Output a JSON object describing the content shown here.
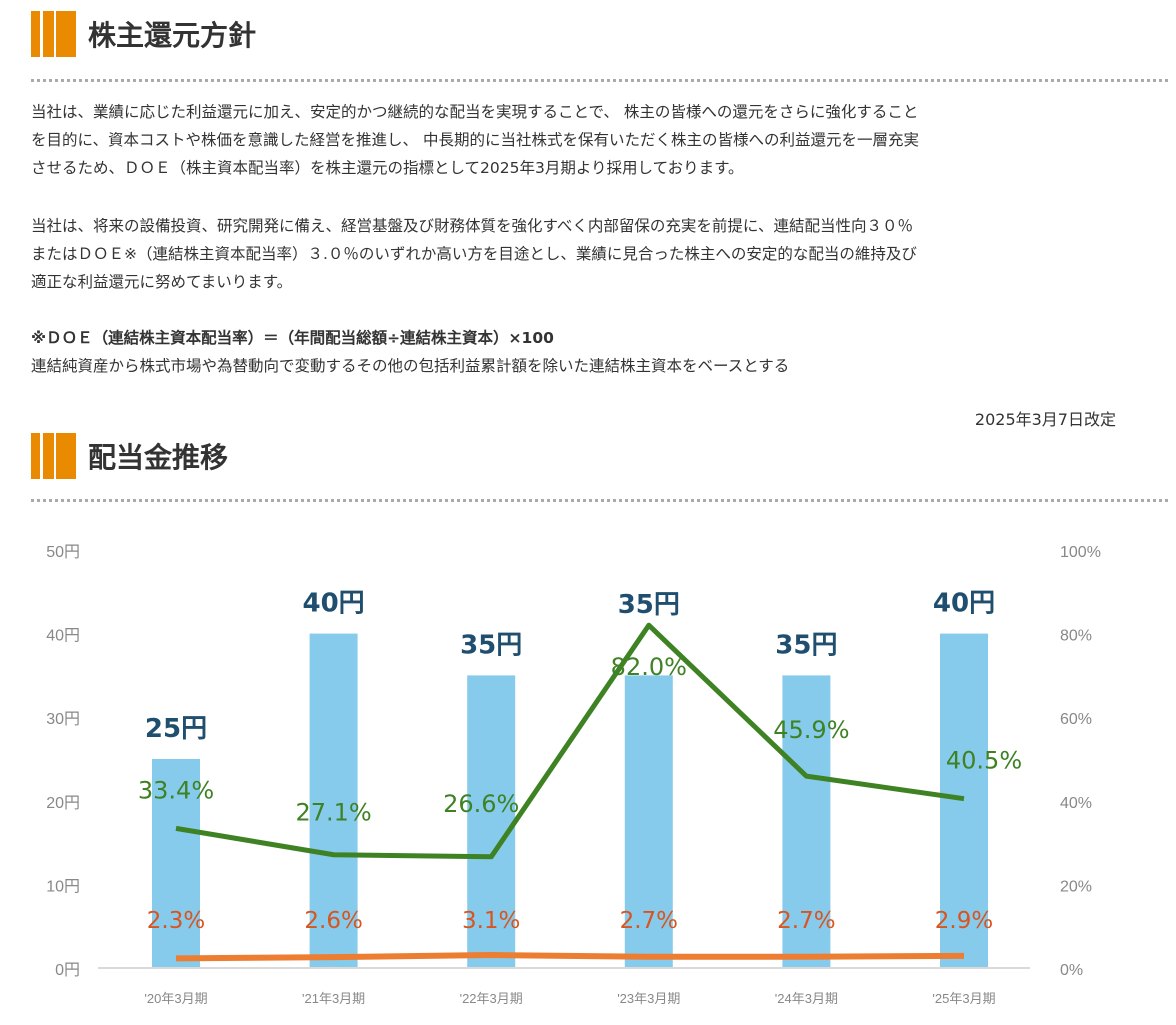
{
  "section1": {
    "title": "株主還元方針",
    "para1": [
      "当社は、業績に応じた利益還元に加え、安定的かつ継続的な配当を実現することで、 株主の皆様への還元をさらに強化すること",
      "を目的に、資本コストや株価を意識した経営を推進し、 中長期的に当社株式を保有いただく株主の皆様への利益還元を一層充実",
      "させるため、ＤＯＥ（株主資本配当率）を株主還元の指標として2025年3月期より採用しております。"
    ],
    "para2": [
      "当社は、将来の設備投資、研究開発に備え、経営基盤及び財務体質を強化すべく内部留保の充実を前提に、連結配当性向３０％",
      "またはＤＯＥ※（連結株主資本配当率）３.０％のいずれか高い方を目途とし、業績に見合った株主への安定的な配当の維持及び",
      "適正な利益還元に努めてまいります。"
    ],
    "formula": "※ＤＯＥ（連結株主資本配当率）＝（年間配当総額÷連結株主資本）×100",
    "note": "連結純資産から株式市場や為替動向で変動するその他の包括利益累計額を除いた連結株主資本をベースとする",
    "revised": "2025年3月7日改定"
  },
  "section2": {
    "title": "配当金推移"
  },
  "chart_data": {
    "type": "bar+line",
    "categories": [
      "'20年3月期",
      "'21年3月期",
      "'22年3月期",
      "'23年3月期",
      "'24年3月期",
      "'25年3月期"
    ],
    "series": [
      {
        "type": "bar",
        "axis": "left",
        "values": [
          25,
          40,
          35,
          35,
          35,
          40
        ],
        "labels": [
          "25円",
          "40円",
          "35円",
          "35円",
          "35円",
          "40円"
        ],
        "color": "#87cbec"
      },
      {
        "type": "line",
        "axis": "right",
        "values": [
          33.4,
          27.1,
          26.6,
          82.0,
          45.9,
          40.5
        ],
        "labels": [
          "33.4%",
          "27.1%",
          "26.6%",
          "82.0%",
          "45.9%",
          "40.5%"
        ],
        "color": "#3e8224"
      },
      {
        "type": "line",
        "axis": "right",
        "values": [
          2.3,
          2.6,
          3.1,
          2.7,
          2.7,
          2.9
        ],
        "labels": [
          "2.3%",
          "2.6%",
          "3.1%",
          "2.7%",
          "2.7%",
          "2.9%"
        ],
        "color": "#ed7d31"
      }
    ],
    "left_axis": {
      "range": [
        0,
        50
      ],
      "ticks": [
        "0円",
        "10円",
        "20円",
        "30円",
        "40円",
        "50円"
      ]
    },
    "right_axis": {
      "range": [
        0,
        100
      ],
      "ticks": [
        "0%",
        "20%",
        "40%",
        "60%",
        "80%",
        "100%"
      ]
    },
    "grid": false,
    "label_colors": {
      "bar": "#1f4e6e",
      "payout": "#3e8224",
      "doe": "#d9541e"
    }
  }
}
